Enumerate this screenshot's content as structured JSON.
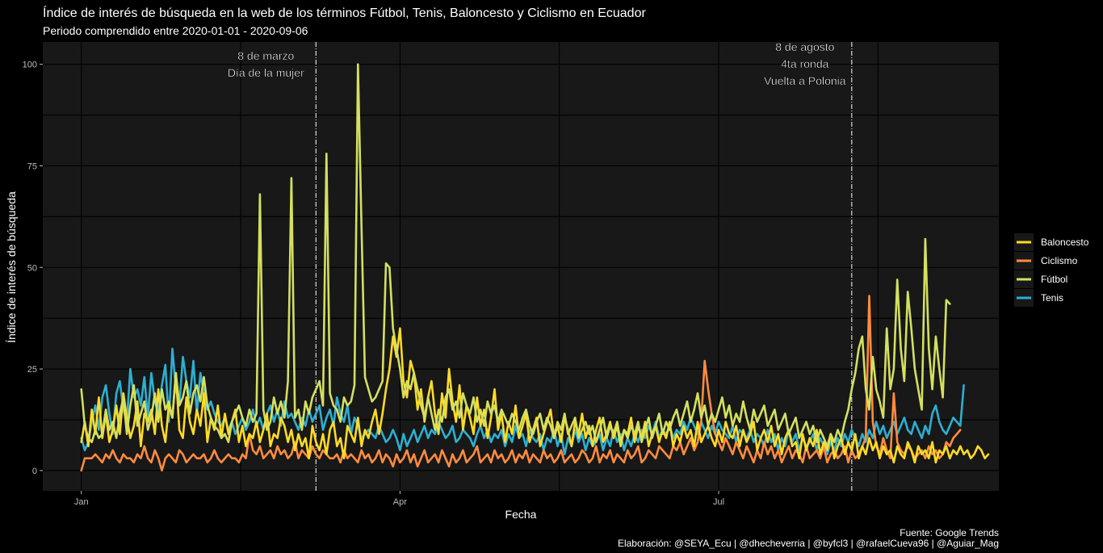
{
  "chart_data": {
    "type": "line",
    "title": "Índice de interés de búsqueda en la web de los términos Fútbol, Tenis, Baloncesto y Ciclismo en Ecuador",
    "subtitle": "Periodo comprendido entre 2020-01-01 - 2020-09-06",
    "xlabel": "Fecha",
    "ylabel": "Índice de interés de búsqueda",
    "x_ticks": [
      {
        "date": "2020-01-01",
        "label": "Jan"
      },
      {
        "date": "2020-04-01",
        "label": "Apr"
      },
      {
        "date": "2020-07-01",
        "label": "Jul"
      }
    ],
    "y_ticks": [
      0,
      25,
      50,
      75,
      100
    ],
    "xlim": [
      "2019-12-21",
      "2020-09-19"
    ],
    "ylim": [
      -5,
      105.5
    ],
    "grid": true,
    "legend_position": "right",
    "annotations": [
      {
        "date": "2020-03-08",
        "lines": [
          "8 de marzo",
          "Día de la mujer"
        ]
      },
      {
        "date": "2020-08-08",
        "lines": [
          "8 de agosto",
          "4ta ronda",
          "Vuelta a Polonia"
        ]
      }
    ],
    "start_date": "2020-01-01",
    "series": [
      {
        "name": "Baloncesto",
        "color": "#FDDB27",
        "values": [
          7,
          12,
          6,
          15,
          9,
          18,
          8,
          14,
          7,
          10,
          16,
          9,
          19,
          13,
          8,
          11,
          17,
          6,
          14,
          12,
          15,
          9,
          20,
          11,
          7,
          16,
          13,
          24,
          10,
          8,
          18,
          12,
          9,
          15,
          11,
          19,
          7,
          13,
          10,
          16,
          8,
          14,
          9,
          12,
          15,
          7,
          11,
          6,
          9,
          8,
          12,
          7,
          10,
          14,
          6,
          9,
          8,
          13,
          11,
          7,
          10,
          5,
          9,
          6,
          8,
          3,
          11,
          7,
          5,
          9,
          4,
          10,
          12,
          6,
          8,
          3,
          11,
          9,
          7,
          13,
          6,
          10,
          8,
          12,
          15,
          9,
          14,
          20,
          25,
          33,
          28,
          35,
          22,
          18,
          27,
          24,
          15,
          20,
          12,
          18,
          22,
          14,
          9,
          19,
          13,
          25,
          17,
          12,
          21,
          10,
          16,
          13,
          9,
          18,
          11,
          15,
          8,
          13,
          20,
          10,
          14,
          7,
          12,
          9,
          16,
          8,
          11,
          14,
          7,
          10,
          13,
          6,
          9,
          12,
          15,
          8,
          11,
          7,
          13,
          10,
          6,
          12,
          9,
          14,
          8,
          11,
          6,
          10,
          13,
          7,
          9,
          12,
          8,
          11,
          6,
          10,
          9,
          13,
          7,
          11,
          8,
          12,
          6,
          9,
          11,
          7,
          10,
          8,
          12,
          6,
          9,
          7,
          11,
          8,
          10,
          6,
          12,
          7,
          9,
          11,
          8,
          6,
          10,
          7,
          12,
          9,
          8,
          11,
          6,
          10,
          7,
          9,
          12,
          5,
          8,
          10,
          7,
          11,
          6,
          9,
          4,
          8,
          10,
          6,
          7,
          3,
          9,
          5,
          8,
          6,
          10,
          4,
          7,
          5,
          9,
          3,
          6,
          8,
          4,
          7,
          5,
          9,
          3,
          6,
          4,
          8,
          5,
          7,
          3,
          6,
          4,
          5,
          2,
          6,
          4,
          3,
          7,
          5,
          2,
          6,
          4,
          5,
          3,
          7,
          2,
          5,
          4,
          6,
          3,
          5,
          4,
          6,
          4,
          5,
          3,
          4,
          6,
          5,
          3,
          4
        ],
        "note": "values are approximate daily readings from the plotted line"
      },
      {
        "name": "Ciclismo",
        "color": "#FF8C3F",
        "values": [
          0,
          3,
          3,
          3,
          4,
          3,
          2,
          4,
          3,
          5,
          3,
          2,
          4,
          3,
          3,
          2,
          4,
          3,
          6,
          3,
          2,
          5,
          3,
          0,
          3,
          4,
          3,
          2,
          5,
          4,
          2,
          3,
          4,
          3,
          3,
          4,
          2,
          3,
          5,
          3,
          2,
          3,
          4,
          3,
          3,
          2,
          4,
          3,
          9,
          5,
          4,
          6,
          3,
          4,
          5,
          3,
          6,
          4,
          5,
          3,
          4,
          7,
          3,
          5,
          4,
          3,
          6,
          4,
          3,
          5,
          4,
          3,
          3,
          4,
          2,
          5,
          3,
          4,
          3,
          2,
          5,
          3,
          4,
          2,
          3,
          5,
          2,
          4,
          3,
          1,
          4,
          2,
          3,
          5,
          2,
          4,
          1,
          3,
          5,
          2,
          3,
          4,
          2,
          5,
          3,
          1,
          4,
          2,
          3,
          5,
          2,
          3,
          4,
          6,
          2,
          3,
          4,
          2,
          5,
          3,
          4,
          2,
          3,
          5,
          2,
          4,
          3,
          5,
          2,
          4,
          3,
          2,
          5,
          3,
          4,
          2,
          3,
          5,
          2,
          3,
          4,
          2,
          3,
          5,
          4,
          2,
          3,
          6,
          2,
          4,
          3,
          5,
          2,
          4,
          3,
          2,
          5,
          3,
          4,
          6,
          2,
          3,
          5,
          4,
          3,
          6,
          5,
          4,
          3,
          6,
          5,
          7,
          4,
          6,
          8,
          5,
          7,
          12,
          27,
          20,
          14,
          9,
          7,
          5,
          8,
          6,
          4,
          7,
          5,
          3,
          6,
          4,
          2,
          5,
          3,
          7,
          4,
          6,
          3,
          5,
          2,
          4,
          6,
          3,
          5,
          4,
          2,
          6,
          3,
          4,
          5,
          3,
          6,
          2,
          4,
          5,
          3,
          4,
          6,
          2,
          5,
          3,
          4,
          6,
          8,
          43,
          12,
          6,
          4,
          8,
          5,
          3,
          19,
          7,
          5,
          4,
          6,
          5,
          3,
          4,
          5,
          3,
          6,
          4,
          5,
          3,
          4,
          7,
          6,
          8,
          9,
          10
        ]
      },
      {
        "name": "Fútbol",
        "color": "#D4E05F",
        "values": [
          20,
          11,
          8,
          7,
          10,
          8,
          9,
          15,
          10,
          12,
          8,
          14,
          18,
          9,
          16,
          21,
          11,
          14,
          17,
          10,
          13,
          19,
          12,
          20,
          15,
          17,
          13,
          24,
          16,
          18,
          22,
          14,
          19,
          21,
          17,
          23,
          16,
          13,
          11,
          10,
          8,
          9,
          7,
          12,
          14,
          16,
          13,
          11,
          15,
          12,
          14,
          68,
          15,
          10,
          12,
          18,
          14,
          17,
          13,
          22,
          72,
          13,
          15,
          10,
          17,
          14,
          18,
          20,
          22,
          16,
          78,
          19,
          16,
          15,
          12,
          18,
          16,
          17,
          21,
          100,
          60,
          23,
          20,
          17,
          18,
          20,
          22,
          51,
          50,
          35,
          30,
          25,
          18,
          22,
          20,
          24,
          20,
          16,
          13,
          18,
          14,
          10,
          15,
          12,
          18,
          20,
          15,
          17,
          13,
          19,
          16,
          14,
          18,
          12,
          15,
          11,
          17,
          14,
          16,
          12,
          15,
          13,
          11,
          14,
          12,
          10,
          13,
          15,
          11,
          9,
          12,
          14,
          10,
          13,
          11,
          8,
          12,
          10,
          14,
          9,
          11,
          13,
          8,
          10,
          12,
          9,
          11,
          7,
          10,
          13,
          8,
          11,
          9,
          12,
          7,
          10,
          8,
          11,
          9,
          12,
          7,
          10,
          13,
          8,
          11,
          14,
          9,
          12,
          10,
          13,
          15,
          11,
          14,
          17,
          12,
          15,
          19,
          13,
          16,
          11,
          14,
          12,
          15,
          18,
          13,
          16,
          11,
          14,
          12,
          17,
          13,
          10,
          15,
          12,
          14,
          16,
          11,
          13,
          15,
          10,
          12,
          14,
          9,
          11,
          13,
          8,
          10,
          12,
          9,
          11,
          7,
          10,
          8,
          6,
          9,
          7,
          10,
          8,
          12,
          15,
          20,
          24,
          30,
          33,
          20,
          15,
          28,
          20,
          17,
          13,
          35,
          20,
          25,
          47,
          30,
          22,
          44,
          35,
          25,
          20,
          15,
          57,
          30,
          20,
          33,
          25,
          18,
          42,
          41
        ]
      },
      {
        "name": "Tenis",
        "color": "#2DAFD1",
        "values": [
          8,
          5,
          7,
          12,
          16,
          10,
          18,
          21,
          14,
          9,
          19,
          22,
          15,
          12,
          25,
          18,
          20,
          16,
          23,
          13,
          24,
          17,
          14,
          21,
          26,
          12,
          30,
          20,
          16,
          28,
          22,
          18,
          27,
          14,
          24,
          19,
          15,
          17,
          14,
          12,
          11,
          13,
          10,
          12,
          9,
          11,
          13,
          10,
          12,
          15,
          11,
          13,
          10,
          14,
          16,
          12,
          15,
          11,
          17,
          13,
          14,
          12,
          10,
          13,
          11,
          15,
          12,
          14,
          16,
          10,
          13,
          15,
          11,
          18,
          14,
          12,
          16,
          9,
          13,
          11,
          8,
          9,
          10,
          9,
          8,
          11,
          9,
          7,
          8,
          10,
          8,
          5,
          9,
          6,
          8,
          10,
          7,
          9,
          11,
          8,
          10,
          9,
          12,
          10,
          8,
          9,
          11,
          7,
          8,
          10,
          9,
          8,
          6,
          9,
          11,
          8,
          10,
          7,
          9,
          8,
          10,
          6,
          9,
          7,
          11,
          8,
          9,
          6,
          10,
          8,
          7,
          9,
          5,
          8,
          7,
          10,
          6,
          9,
          4,
          8,
          6,
          10,
          7,
          9,
          5,
          8,
          6,
          7,
          9,
          5,
          8,
          6,
          10,
          7,
          9,
          5,
          8,
          6,
          9,
          7,
          10,
          8,
          11,
          9,
          12,
          8,
          10,
          9,
          11,
          8,
          10,
          9,
          12,
          10,
          13,
          11,
          9,
          12,
          10,
          8,
          11,
          9,
          12,
          10,
          9,
          8,
          11,
          7,
          10,
          9,
          8,
          10,
          7,
          9,
          8,
          6,
          10,
          7,
          9,
          5,
          8,
          6,
          10,
          7,
          9,
          5,
          8,
          6,
          7,
          9,
          5,
          8,
          6,
          4,
          7,
          5,
          8,
          6,
          9,
          7,
          10,
          8,
          6,
          9,
          7,
          10,
          8,
          12,
          9,
          11,
          8,
          10,
          12,
          9,
          11,
          13,
          10,
          9,
          12,
          10,
          8,
          11,
          9,
          14,
          16,
          12,
          10,
          9,
          11,
          13,
          12,
          11,
          21
        ]
      }
    ]
  },
  "caption": {
    "line1": "Fuente: Google Trends",
    "line2": "Elaboración: @SEYA_Ecu | @dhecheverria | @byfcl3 | @rafaelCueva96 | @Aguiar_Mag"
  }
}
